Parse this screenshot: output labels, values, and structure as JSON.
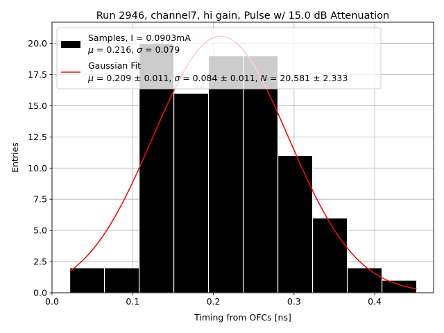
{
  "chart_data": {
    "type": "bar",
    "title": "Run 2946, channel7, hi gain, Pulse w/ 15.0 dB Attenuation",
    "xlabel": "Timing from OFCs [ns]",
    "ylabel": "Entries",
    "xlim": [
      0.0,
      0.473
    ],
    "ylim": [
      0.0,
      21.7
    ],
    "xticks": [
      "0.0",
      "0.1",
      "0.2",
      "0.3",
      "0.4"
    ],
    "yticks": [
      "0.0",
      "2.5",
      "5.0",
      "7.5",
      "10.0",
      "12.5",
      "15.0",
      "17.5",
      "20.0"
    ],
    "grid": true,
    "legend_position": "top-left",
    "bins": [
      {
        "x0": 0.022,
        "x1": 0.065,
        "count": 2
      },
      {
        "x0": 0.065,
        "x1": 0.108,
        "count": 2
      },
      {
        "x0": 0.108,
        "x1": 0.151,
        "count": 20
      },
      {
        "x0": 0.151,
        "x1": 0.194,
        "count": 16
      },
      {
        "x0": 0.194,
        "x1": 0.237,
        "count": 19
      },
      {
        "x0": 0.237,
        "x1": 0.28,
        "count": 19
      },
      {
        "x0": 0.28,
        "x1": 0.323,
        "count": 11
      },
      {
        "x0": 0.323,
        "x1": 0.366,
        "count": 6
      },
      {
        "x0": 0.366,
        "x1": 0.409,
        "count": 2
      },
      {
        "x0": 0.409,
        "x1": 0.452,
        "count": 1
      }
    ],
    "fit": {
      "mu": 0.209,
      "sigma": 0.084,
      "N": 20.581,
      "x_start": 0.022,
      "x_end": 0.452
    },
    "series": [
      {
        "name": "Samples",
        "color": "#000000",
        "label_line1": "Samples, I = 0.0903mA",
        "label_line2_parts": [
          "μ",
          " = 0.216, ",
          "σ",
          " = 0.079"
        ]
      },
      {
        "name": "Gaussian Fit",
        "color": "#e8120c",
        "label_line1": "Gaussian Fit",
        "label_line2_parts": [
          "μ",
          " = 0.209 ± 0.011, ",
          "σ",
          " = 0.084 ± 0.011, ",
          "N",
          " = 20.581 ± 2.333"
        ]
      }
    ]
  }
}
